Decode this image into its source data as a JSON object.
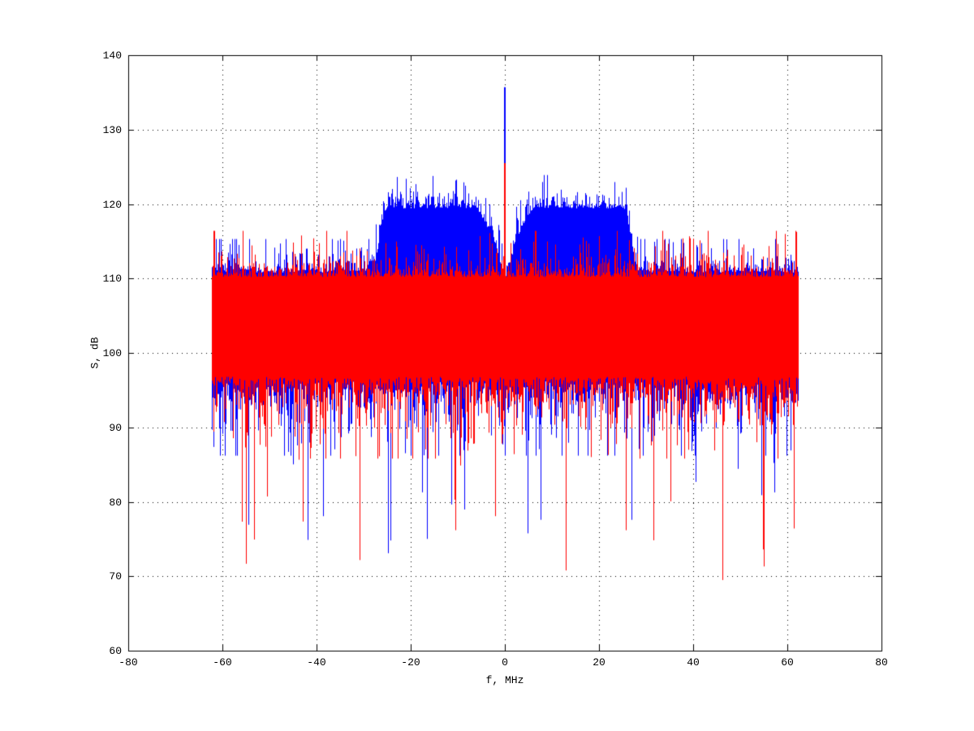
{
  "window": {
    "background": "#ffffff"
  },
  "chart_data": {
    "type": "line",
    "title": "",
    "xlabel": "f, MHz",
    "ylabel": "S, dB",
    "xlim": [
      -80,
      80
    ],
    "ylim": [
      60,
      140
    ],
    "xticks": [
      -80,
      -60,
      -40,
      -20,
      0,
      20,
      40,
      60,
      80
    ],
    "xtick_labels": [
      "-80",
      "-60",
      "-40",
      "-20",
      "0",
      "20",
      "40",
      "60",
      "80"
    ],
    "yticks": [
      60,
      70,
      80,
      90,
      100,
      110,
      120,
      130,
      140
    ],
    "ytick_labels": [
      "60",
      "70",
      "80",
      "90",
      "100",
      "110",
      "120",
      "130",
      "140"
    ],
    "grid": "dotted",
    "grid_color": "#000000",
    "axis_color": "#000000",
    "background": "#ffffff",
    "legend": "none",
    "seed": 1234,
    "signal_band_MHz": [
      -62.4,
      62.4
    ],
    "series": [
      {
        "name": "blue-trace",
        "color": "#0000ff",
        "draw_order": 1,
        "noise_top_dB": 110.8,
        "noise_bottom_dB": 96.2,
        "top_jitter_max_dB": 4.5,
        "bottom_jitter_max_dB": 10,
        "hump": {
          "plateau_half_width_MHz": 25,
          "rolloff_end_MHz": 28.5,
          "plateau_gain_dB": 8.6,
          "center_rise_MHz": 6,
          "center_notch_half_width_MHz": 2.5,
          "center_notch_extra_dB": 2.5,
          "plateau_peak_dB": 124
        },
        "deep_fade_probability": 0.04,
        "deep_fade_range_dB": [
          72,
          88
        ],
        "min_dB": 69,
        "carrier_spike": {
          "f_MHz": 0,
          "peak_dB": 135.7,
          "base_dB": 96
        }
      },
      {
        "name": "red-trace",
        "color": "#ff0000",
        "draw_order": 2,
        "noise_top_dB": 110.2,
        "noise_bottom_dB": 96.8,
        "top_jitter_max_dB": 6.2,
        "bottom_jitter_max_dB": 11,
        "hump": null,
        "deep_fade_probability": 0.05,
        "deep_fade_range_dB": [
          67,
          87
        ],
        "min_dB": 66.5,
        "carrier_spike": {
          "f_MHz": 0,
          "peak_dB": 125.5,
          "base_dB": 96
        }
      }
    ]
  }
}
